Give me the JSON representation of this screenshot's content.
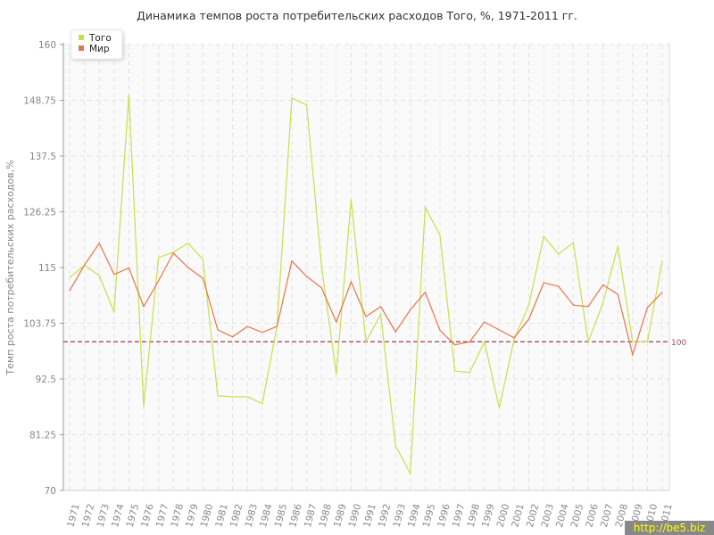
{
  "chart_data": {
    "type": "line",
    "title": "Динамика темпов роста потребительских расходов Того, %, 1971-2011 гг.",
    "xlabel": "",
    "ylabel": "Темп роста потребительских расходов,%",
    "ylim": [
      70,
      160
    ],
    "yticks": [
      "70",
      "81.25",
      "92.5",
      "103.75",
      "115",
      "126.25",
      "137.5",
      "148.75",
      "160"
    ],
    "grid": true,
    "legend_position": "top-left",
    "x": [
      "1971",
      "1972",
      "1973",
      "1974",
      "1975",
      "1976",
      "1977",
      "1978",
      "1979",
      "1980",
      "1981",
      "1982",
      "1983",
      "1984",
      "1985",
      "1986",
      "1987",
      "1988",
      "1989",
      "1990",
      "1991",
      "1992",
      "1993",
      "1994",
      "1995",
      "1996",
      "1997",
      "1998",
      "1999",
      "2000",
      "2001",
      "2002",
      "2003",
      "2004",
      "2005",
      "2006",
      "2007",
      "2008",
      "2009",
      "2010",
      "2011"
    ],
    "series": [
      {
        "name": "Того",
        "color": "#c8e04a",
        "values": [
          113.0,
          115.4,
          113.4,
          106.0,
          149.9,
          86.9,
          117.0,
          118.1,
          119.9,
          116.6,
          89.1,
          88.9,
          88.9,
          87.5,
          103.1,
          149.2,
          147.8,
          115.4,
          93.4,
          128.7,
          100.0,
          105.6,
          79.0,
          73.4,
          127.2,
          121.5,
          94.1,
          93.8,
          100.0,
          86.7,
          100.5,
          107.5,
          121.3,
          117.7,
          120.0,
          100.0,
          107.8,
          119.3,
          100.0,
          100.0,
          116.3
        ]
      },
      {
        "name": "Мир",
        "color": "#e8754a",
        "values": [
          110.3,
          115.5,
          119.9,
          113.6,
          114.9,
          107.1,
          112.3,
          117.9,
          115.0,
          112.8,
          102.4,
          101.0,
          103.1,
          101.9,
          103.1,
          116.3,
          113.2,
          110.9,
          104.0,
          112.1,
          105.1,
          107.1,
          102.0,
          106.5,
          110.0,
          102.3,
          99.4,
          100.0,
          104.0,
          102.4,
          100.8,
          104.6,
          111.9,
          111.2,
          107.4,
          107.1,
          111.5,
          109.6,
          97.4,
          106.9,
          110.0
        ]
      }
    ],
    "reference_line": {
      "value": 100,
      "label": "100",
      "color": "#a05060"
    }
  },
  "watermark": "http://be5.biz"
}
